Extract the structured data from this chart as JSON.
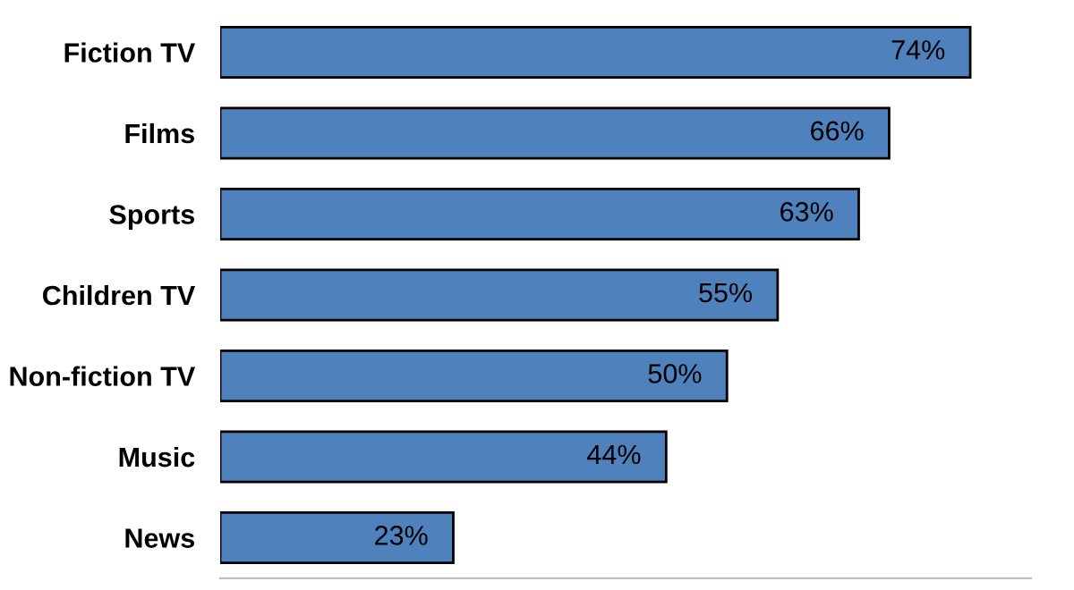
{
  "chart_data": {
    "type": "bar",
    "orientation": "horizontal",
    "categories": [
      "Fiction TV",
      "Films",
      "Sports",
      "Children TV",
      "Non-fiction TV",
      "Music",
      "News"
    ],
    "values": [
      74,
      66,
      63,
      55,
      50,
      44,
      23
    ],
    "value_labels": [
      "74%",
      "66%",
      "63%",
      "55%",
      "50%",
      "44%",
      "23%"
    ],
    "color": "#4f81bd",
    "xlim": [
      0,
      80
    ],
    "grid": false,
    "legend": false
  }
}
